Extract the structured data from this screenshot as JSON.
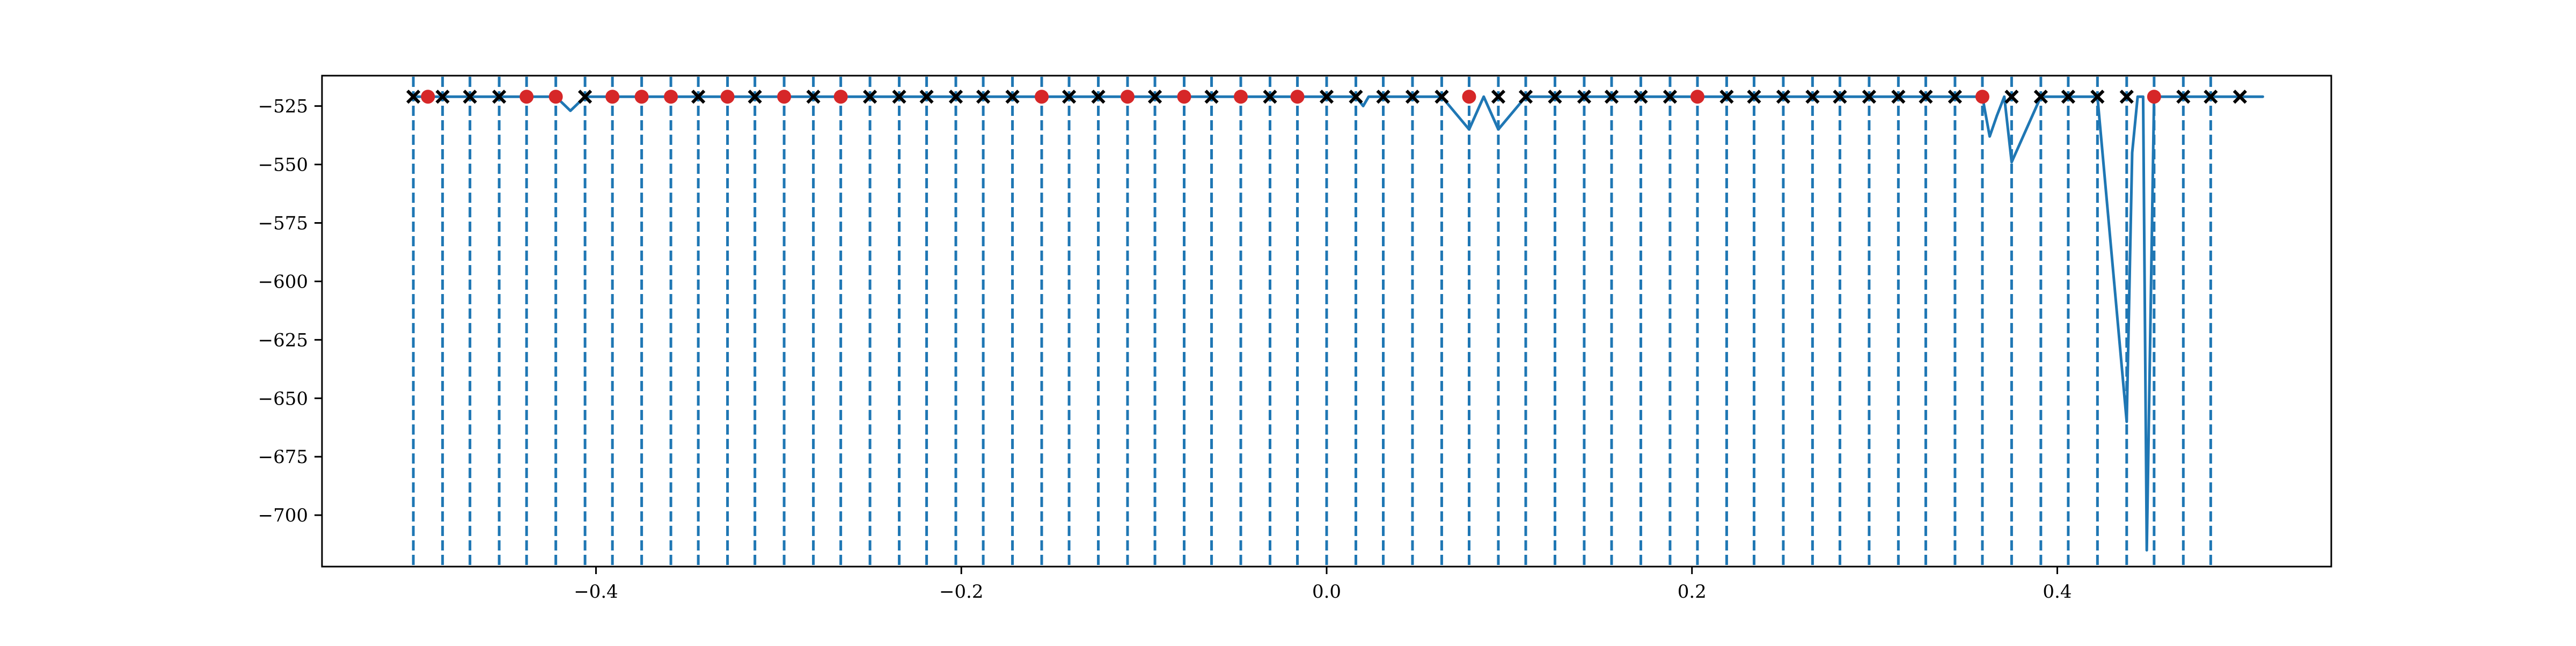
{
  "chart_data": {
    "type": "line",
    "title": "",
    "xlabel": "",
    "ylabel": "",
    "xlim": [
      -0.55,
      0.55
    ],
    "ylim": [
      -722,
      -512
    ],
    "grid": false,
    "legend": null,
    "x_ticks": [
      {
        "value": -0.4,
        "label": "−0.4"
      },
      {
        "value": -0.2,
        "label": "−0.2"
      },
      {
        "value": 0.0,
        "label": "0.0"
      },
      {
        "value": 0.2,
        "label": "0.2"
      },
      {
        "value": 0.4,
        "label": "0.4"
      }
    ],
    "y_ticks": [
      {
        "value": -525,
        "label": "−525"
      },
      {
        "value": -550,
        "label": "−550"
      },
      {
        "value": -575,
        "label": "−575"
      },
      {
        "value": -600,
        "label": "−600"
      },
      {
        "value": -625,
        "label": "−625"
      },
      {
        "value": -650,
        "label": "−650"
      },
      {
        "value": -675,
        "label": "−675"
      },
      {
        "value": -700,
        "label": "−700"
      }
    ],
    "colors": {
      "line": "#1f77b4",
      "vlines": "#1f77b4",
      "red_marker": "#d62728",
      "x_marker": "#000000"
    },
    "vertical_dashed_lines": [
      -0.5,
      -0.484,
      -0.469,
      -0.453,
      -0.438,
      -0.422,
      -0.406,
      -0.391,
      -0.375,
      -0.359,
      -0.344,
      -0.328,
      -0.313,
      -0.297,
      -0.281,
      -0.266,
      -0.25,
      -0.234,
      -0.219,
      -0.203,
      -0.188,
      -0.172,
      -0.156,
      -0.141,
      -0.125,
      -0.109,
      -0.094,
      -0.078,
      -0.063,
      -0.047,
      -0.031,
      -0.016,
      0.0,
      0.016,
      0.031,
      0.047,
      0.063,
      0.078,
      0.094,
      0.109,
      0.125,
      0.141,
      0.156,
      0.172,
      0.188,
      0.203,
      0.219,
      0.234,
      0.25,
      0.266,
      0.281,
      0.297,
      0.313,
      0.328,
      0.344,
      0.359,
      0.375,
      0.391,
      0.406,
      0.422,
      0.438,
      0.453,
      0.469,
      0.484
    ],
    "series_line": {
      "x": [
        -0.5,
        -0.492,
        -0.484,
        -0.469,
        -0.453,
        -0.438,
        -0.422,
        -0.414,
        -0.406,
        -0.391,
        -0.375,
        -0.359,
        -0.344,
        -0.328,
        -0.313,
        -0.297,
        -0.281,
        -0.266,
        -0.25,
        -0.234,
        -0.219,
        -0.203,
        -0.188,
        -0.172,
        -0.156,
        -0.141,
        -0.125,
        -0.109,
        -0.094,
        -0.078,
        -0.063,
        -0.047,
        -0.031,
        -0.016,
        0.0,
        0.016,
        0.02,
        0.023,
        0.031,
        0.047,
        0.063,
        0.078,
        0.082,
        0.086,
        0.09,
        0.094,
        0.109,
        0.125,
        0.141,
        0.156,
        0.172,
        0.188,
        0.203,
        0.219,
        0.234,
        0.25,
        0.266,
        0.281,
        0.297,
        0.313,
        0.328,
        0.344,
        0.359,
        0.363,
        0.367,
        0.371,
        0.375,
        0.391,
        0.406,
        0.422,
        0.438,
        0.441,
        0.444,
        0.447,
        0.449,
        0.453,
        0.469,
        0.484,
        0.5,
        0.5125
      ],
      "y": [
        -521,
        -521,
        -521,
        -521,
        -521,
        -521,
        -521,
        -527,
        -521,
        -521,
        -521,
        -521,
        -521,
        -521,
        -521,
        -521,
        -521,
        -521,
        -521,
        -521,
        -521,
        -521,
        -521,
        -521,
        -521,
        -521,
        -521,
        -521,
        -521,
        -521,
        -521,
        -521,
        -521,
        -521,
        -521,
        -521,
        -525,
        -521,
        -521,
        -521,
        -521,
        -535,
        -528,
        -521,
        -528,
        -535,
        -521,
        -521,
        -521,
        -521,
        -521,
        -521,
        -521,
        -521,
        -521,
        -521,
        -521,
        -521,
        -521,
        -521,
        -521,
        -521,
        -521,
        -538,
        -529,
        -521,
        -549,
        -521,
        -521,
        -521,
        -660,
        -545,
        -521,
        -521,
        -715,
        -521,
        -521,
        -521,
        -521,
        -521
      ]
    },
    "markers_x": [
      -0.5,
      -0.484,
      -0.469,
      -0.453,
      -0.406,
      -0.344,
      -0.313,
      -0.281,
      -0.25,
      -0.234,
      -0.219,
      -0.203,
      -0.188,
      -0.172,
      -0.141,
      -0.125,
      -0.094,
      -0.063,
      -0.031,
      0.0,
      0.016,
      0.031,
      0.047,
      0.063,
      0.094,
      0.109,
      0.125,
      0.141,
      0.156,
      0.172,
      0.188,
      0.219,
      0.234,
      0.25,
      0.266,
      0.281,
      0.297,
      0.313,
      0.328,
      0.344,
      0.375,
      0.391,
      0.406,
      0.422,
      0.438,
      0.469,
      0.484,
      0.5
    ],
    "markers_red": [
      -0.492,
      -0.438,
      -0.422,
      -0.391,
      -0.375,
      -0.359,
      -0.328,
      -0.297,
      -0.266,
      -0.156,
      -0.109,
      -0.078,
      -0.047,
      -0.016,
      0.078,
      0.203,
      0.359,
      0.453
    ],
    "markers_level": -521
  }
}
